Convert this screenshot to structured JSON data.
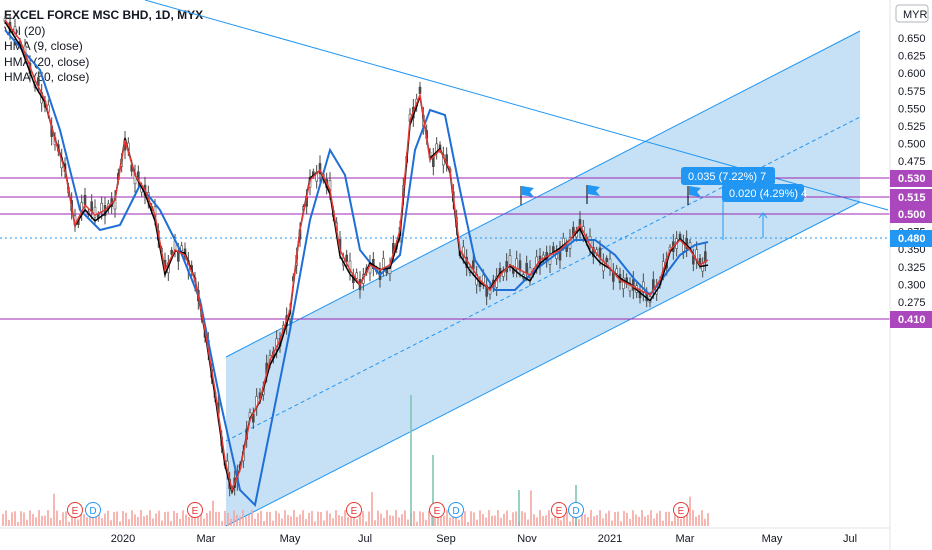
{
  "legend": {
    "title": "EXCEL FORCE MSC BHD, 1D, MYX",
    "lines": [
      "Vol (20)",
      "HMA (9, close)",
      "HMA (20, close)",
      "HMA (50, close)"
    ]
  },
  "currency": "MYR",
  "colors": {
    "channel_fill": "#bcdcf5",
    "channel_line": "#2196f3",
    "level_line": "#9c27b0",
    "level_badge": "#ab47bc",
    "price_badge": "#2196f3",
    "hma_fast": "#e53935",
    "hma_mid": "#000000",
    "hma_slow": "#1e6fd6",
    "candle": "#555555",
    "volume": "#f4a59f"
  },
  "chart_data": {
    "type": "line",
    "y_ticks": [
      "0.650",
      "0.625",
      "0.600",
      "0.575",
      "0.550",
      "0.525",
      "0.500",
      "0.475",
      "0.450",
      "0.425",
      "0.400",
      "0.375",
      "0.350",
      "0.325",
      "0.300",
      "0.275",
      "0.250"
    ],
    "x_ticks": [
      "2020",
      "Mar",
      "May",
      "Jul",
      "Sep",
      "Nov",
      "2021",
      "Mar",
      "May",
      "Jul"
    ],
    "level_lines": [
      "0.530",
      "0.515",
      "0.500",
      "0.410"
    ],
    "last_price": "0.480",
    "ylim": [
      0.24,
      0.66
    ],
    "measures": [
      "0.035 (7.22%) 7",
      "0.020 (4.29%) 4"
    ],
    "events": [
      "E",
      "D",
      "E",
      "E",
      "E",
      "E",
      "D",
      "E",
      "E",
      "D",
      "E"
    ]
  }
}
